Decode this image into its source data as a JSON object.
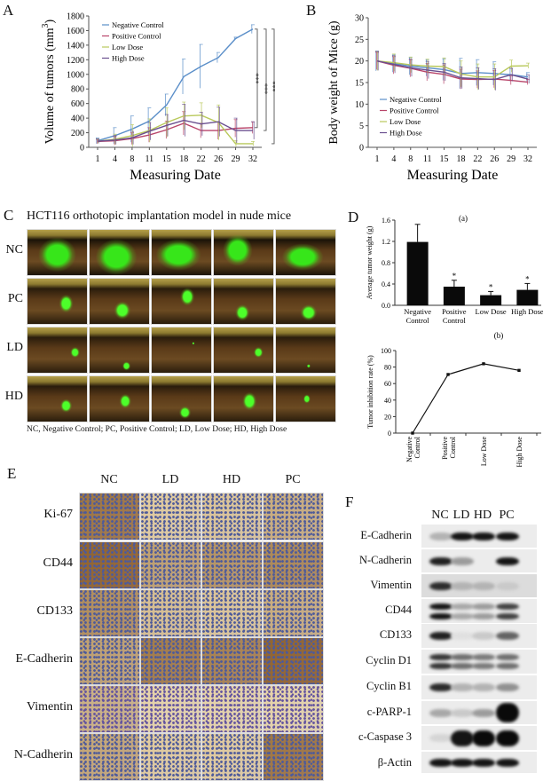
{
  "panels": {
    "A": {
      "label": "A"
    },
    "B": {
      "label": "B"
    },
    "C": {
      "label": "C",
      "title": "HCT116 orthotopic implantation model in nude mice",
      "rows": [
        "NC",
        "PC",
        "LD",
        "HD"
      ],
      "caption": "NC, Negative Control; PC, Positive Control; LD, Low Dose; HD, High Dose"
    },
    "D": {
      "label": "D",
      "sub_a": "(a)",
      "sub_b": "(b)"
    },
    "E": {
      "label": "E",
      "columns": [
        "NC",
        "LD",
        "HD",
        "PC"
      ],
      "rows": [
        "Ki-67",
        "CD44",
        "CD133",
        "E-Cadherin",
        "Vimentin",
        "N-Cadherin"
      ]
    },
    "F": {
      "label": "F",
      "columns": [
        "NC",
        "LD",
        "HD",
        "PC"
      ],
      "rows": [
        "E-Cadherin",
        "N-Cadherin",
        "Vimentin",
        "CD44",
        "CD133",
        "Cyclin D1",
        "Cyclin B1",
        "c-PARP-1",
        "c-Caspase 3",
        "β-Actin"
      ]
    }
  },
  "colors": {
    "negative": "#5b8fc9",
    "positive": "#b8456a",
    "low": "#b9c95c",
    "high": "#6a4f8f"
  },
  "chart_data": [
    {
      "id": "A",
      "type": "line",
      "title": "",
      "xlabel": "Measuring Date",
      "ylabel": "Volume of tumors (mm3)",
      "x": [
        1,
        4,
        8,
        11,
        15,
        18,
        22,
        26,
        29,
        32
      ],
      "ylim": [
        0,
        1800
      ],
      "yticks": [
        0,
        200,
        400,
        600,
        800,
        1000,
        1200,
        1400,
        1600,
        1800
      ],
      "legend": [
        "Negative Control",
        "Positive Control",
        "Low Dose",
        "High Dose"
      ],
      "legend_position": "upper left",
      "series": [
        {
          "name": "Negative Control",
          "values": [
            90,
            160,
            250,
            360,
            580,
            970,
            1110,
            1230,
            1490,
            1620
          ],
          "err": [
            40,
            110,
            180,
            180,
            150,
            240,
            300,
            70,
            20,
            60
          ]
        },
        {
          "name": "Positive Control",
          "values": [
            80,
            90,
            120,
            170,
            240,
            330,
            230,
            230,
            260,
            270
          ],
          "err": [
            30,
            60,
            80,
            100,
            120,
            160,
            100,
            120,
            120,
            80
          ]
        },
        {
          "name": "Low Dose",
          "values": [
            85,
            110,
            160,
            230,
            340,
            430,
            440,
            340,
            50,
            50
          ],
          "err": [
            30,
            70,
            150,
            160,
            200,
            190,
            170,
            240,
            40,
            30
          ]
        },
        {
          "name": "High Dose",
          "values": [
            85,
            100,
            130,
            220,
            300,
            370,
            320,
            350,
            230,
            230
          ],
          "err": [
            30,
            60,
            90,
            120,
            150,
            220,
            160,
            200,
            170,
            120
          ]
        }
      ],
      "annotations": [
        "***",
        "***",
        "***"
      ]
    },
    {
      "id": "B",
      "type": "line",
      "title": "",
      "xlabel": "Measuring Date",
      "ylabel": "Body weight of Mice (g)",
      "x": [
        1,
        4,
        8,
        11,
        15,
        18,
        22,
        26,
        29,
        32
      ],
      "ylim": [
        0,
        30
      ],
      "yticks": [
        0,
        5,
        10,
        15,
        20,
        25,
        30
      ],
      "legend": [
        "Negative Control",
        "Positive Control",
        "Low Dose",
        "High Dose"
      ],
      "legend_position": "lower left",
      "series": [
        {
          "name": "Negative Control",
          "values": [
            20,
            19.4,
            18.8,
            18.4,
            18,
            17.1,
            17.3,
            17.1,
            16.8,
            16.3
          ],
          "err": [
            2.3,
            2.0,
            2.0,
            1.9,
            2.5,
            3.5,
            3.0,
            2.7,
            1.5,
            1.0
          ]
        },
        {
          "name": "Positive Control",
          "values": [
            20,
            19,
            18.3,
            17.4,
            16.9,
            15.8,
            15.7,
            15.8,
            15.5,
            15.1
          ],
          "err": [
            2.0,
            2.0,
            2.0,
            2.0,
            2.2,
            2.3,
            2.0,
            2.0,
            1.0,
            0.6
          ]
        },
        {
          "name": "Low Dose",
          "values": [
            20,
            19.6,
            19.1,
            18.8,
            18.7,
            17.0,
            16.3,
            16.3,
            18.8,
            18.9
          ],
          "err": [
            2.2,
            2.0,
            1.8,
            1.6,
            2.0,
            3.0,
            3.0,
            3.0,
            1.4,
            0.6
          ]
        },
        {
          "name": "High Dose",
          "values": [
            20,
            19.2,
            18.4,
            17.9,
            17.4,
            16.1,
            15.9,
            15.7,
            16.8,
            15.8
          ],
          "err": [
            2.2,
            2.0,
            2.0,
            2.0,
            2.0,
            2.5,
            2.5,
            2.5,
            1.5,
            1.0
          ]
        }
      ]
    },
    {
      "id": "D(a)",
      "type": "bar",
      "title": "(a)",
      "xlabel": "",
      "ylabel": "Average tumor weight (g)",
      "categories": [
        "Negative Control",
        "Positive Control",
        "Low Dose",
        "High Dose"
      ],
      "values": [
        1.19,
        0.35,
        0.19,
        0.29
      ],
      "err": [
        0.33,
        0.12,
        0.07,
        0.12
      ],
      "ylim": [
        0,
        1.6
      ],
      "yticks": [
        0.0,
        0.4,
        0.8,
        1.2,
        1.6
      ],
      "annotations": [
        "",
        "*",
        "*",
        "*"
      ]
    },
    {
      "id": "D(b)",
      "type": "line",
      "title": "(b)",
      "xlabel": "",
      "ylabel": "Tumor inhibition rate (%)",
      "categories": [
        "Negative Control",
        "Positive Control",
        "Low Dose",
        "High Dose"
      ],
      "values": [
        0,
        71,
        84,
        76
      ],
      "ylim": [
        0,
        100
      ],
      "yticks": [
        0,
        20,
        40,
        60,
        80,
        100
      ]
    }
  ]
}
